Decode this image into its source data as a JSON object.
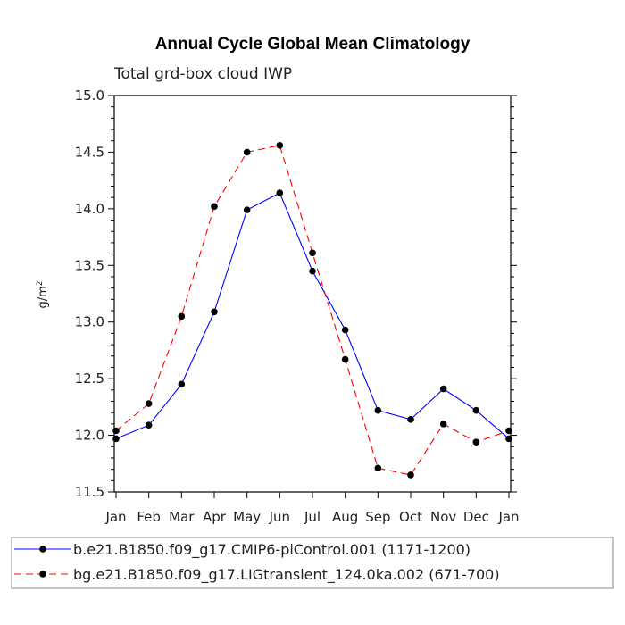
{
  "chart_data": {
    "type": "line",
    "title": "Annual Cycle Global Mean Climatology",
    "subtitle": "Total grd-box cloud IWP",
    "ylabel_base": "g/m",
    "ylabel_sup": "2",
    "xlabel": "",
    "ylim": [
      11.5,
      15.0
    ],
    "yticks": [
      "11.5",
      "12.0",
      "12.5",
      "13.0",
      "13.5",
      "14.0",
      "14.5",
      "15.0"
    ],
    "categories": [
      "Jan",
      "Feb",
      "Mar",
      "Apr",
      "May",
      "Jun",
      "Jul",
      "Aug",
      "Sep",
      "Oct",
      "Nov",
      "Dec",
      "Jan"
    ],
    "series": [
      {
        "name": "b.e21.B1850.f09_g17.CMIP6-piControl.001 (1171-1200)",
        "color": "#0000ff",
        "dash": "solid",
        "values": [
          11.97,
          12.09,
          12.45,
          13.09,
          13.99,
          14.14,
          13.45,
          12.93,
          12.22,
          12.14,
          12.41,
          12.22,
          11.97
        ]
      },
      {
        "name": "bg.e21.B1850.f09_g17.LIGtransient_124.0ka.002 (671-700)",
        "color": "#ff0000",
        "dash": "dashed",
        "values": [
          12.04,
          12.28,
          13.05,
          14.02,
          14.5,
          14.56,
          13.61,
          12.67,
          11.71,
          11.65,
          12.1,
          11.94,
          12.04
        ]
      }
    ]
  }
}
